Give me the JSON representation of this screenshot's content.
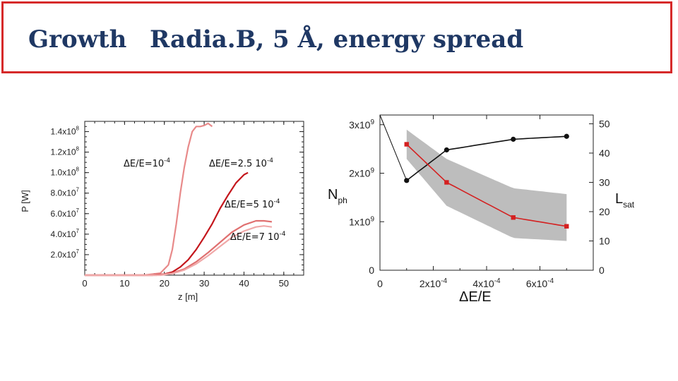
{
  "slide": {
    "title_left": "Growth",
    "title_right": "Radia.B, 5 Å, energy spread",
    "colors": {
      "border": "#d62a2a",
      "title": "#1f3864"
    }
  },
  "chart_data": [
    {
      "type": "line",
      "title": "",
      "xlabel": "z [m]",
      "ylabel": "P [W]",
      "xlim": [
        0,
        55
      ],
      "ylim": [
        0,
        150000000
      ],
      "x_ticks": [
        "0",
        "10",
        "20",
        "30",
        "40",
        "50"
      ],
      "y_tick_values": [
        20000000,
        40000000,
        60000000,
        80000000,
        100000000,
        120000000,
        140000000
      ],
      "y_ticks": [
        {
          "mant": "2.0x10",
          "exp": "7"
        },
        {
          "mant": "4.0x10",
          "exp": "7"
        },
        {
          "mant": "6.0x10",
          "exp": "7"
        },
        {
          "mant": "8.0x10",
          "exp": "7"
        },
        {
          "mant": "1.0x10",
          "exp": "8"
        },
        {
          "mant": "1.2x10",
          "exp": "8"
        },
        {
          "mant": "1.4x10",
          "exp": "8"
        }
      ],
      "series": [
        {
          "name": "ΔE/E=10-4",
          "color": "#e88a8a",
          "x": [
            0,
            15,
            19,
            21,
            22,
            23,
            24,
            25,
            26,
            27,
            28,
            29,
            30,
            31,
            32
          ],
          "y": [
            0,
            0,
            2000000,
            10000000,
            25000000,
            50000000,
            80000000,
            105000000,
            125000000,
            140000000,
            145000000,
            145000000,
            146000000,
            148000000,
            145000000
          ]
        },
        {
          "name": "ΔE/E=2.5 10-4",
          "color": "#c4161c",
          "x": [
            0,
            17,
            20,
            22,
            24,
            26,
            28,
            30,
            32,
            34,
            36,
            38,
            40,
            41
          ],
          "y": [
            0,
            0,
            1000000,
            3000000,
            8000000,
            15000000,
            25000000,
            37000000,
            50000000,
            65000000,
            78000000,
            90000000,
            98000000,
            100000000
          ]
        },
        {
          "name": "ΔE/E=5 10-4",
          "color": "#e07070",
          "x": [
            0,
            18,
            22,
            25,
            28,
            31,
            34,
            37,
            40,
            43,
            45,
            47
          ],
          "y": [
            0,
            0,
            2000000,
            6000000,
            13000000,
            22000000,
            32000000,
            42000000,
            49000000,
            53000000,
            53000000,
            52000000
          ]
        },
        {
          "name": "ΔE/E=7 10-4",
          "color": "#f0a8a8",
          "x": [
            0,
            19,
            22,
            25,
            28,
            31,
            34,
            37,
            40,
            43,
            45,
            47
          ],
          "y": [
            0,
            0,
            1500000,
            5000000,
            11000000,
            19000000,
            28000000,
            37000000,
            43000000,
            47000000,
            48000000,
            47000000
          ]
        }
      ],
      "annotations": [
        {
          "base": "ΔE/E=10",
          "exp": "-4"
        },
        {
          "base": "ΔE/E=2.5 10",
          "exp": "-4"
        },
        {
          "base": "ΔE/E=5 10",
          "exp": "-4"
        },
        {
          "base": "ΔE/E=7 10",
          "exp": "-4"
        }
      ]
    },
    {
      "type": "line",
      "title": "",
      "xlabel": "ΔE/E",
      "ylabel_left": {
        "base": "N",
        "sub": "ph"
      },
      "ylabel_right": {
        "base": "L",
        "sub": "sat"
      },
      "xlim": [
        0,
        0.0008
      ],
      "ylim_left": [
        0,
        3200000000
      ],
      "ylim_right": [
        0,
        53
      ],
      "x_ticks": [
        {
          "value": 0,
          "mant": "0",
          "exp": ""
        },
        {
          "value": 0.0002,
          "mant": "2x10",
          "exp": "-4"
        },
        {
          "value": 0.0004,
          "mant": "4x10",
          "exp": "-4"
        },
        {
          "value": 0.0006,
          "mant": "6x10",
          "exp": "-4"
        }
      ],
      "y_ticks_left": [
        {
          "value": 0,
          "mant": "0",
          "exp": ""
        },
        {
          "value": 1000000000,
          "mant": "1x10",
          "exp": "9"
        },
        {
          "value": 2000000000,
          "mant": "2x10",
          "exp": "9"
        },
        {
          "value": 3000000000,
          "mant": "3x10",
          "exp": "9"
        }
      ],
      "y_ticks_right": [
        "0",
        "10",
        "20",
        "30",
        "40",
        "50"
      ],
      "series": [
        {
          "name": "Nph",
          "axis": "left",
          "color": "#111111",
          "x": [
            0.0001,
            0.00025,
            0.0005,
            0.0007
          ],
          "y": [
            1850000000,
            2480000000,
            2700000000,
            2760000000
          ]
        },
        {
          "name": "Lsat",
          "axis": "right",
          "color": "#d42020",
          "x": [
            0.0001,
            0.00025,
            0.0005,
            0.0007
          ],
          "y": [
            43,
            30,
            18,
            15
          ],
          "band_upper": [
            48,
            38,
            28,
            26
          ],
          "band_lower": [
            38,
            22,
            11,
            10
          ]
        }
      ],
      "diagonal_line": {
        "x": [
          0,
          0.0001
        ],
        "y": [
          3200000000,
          1850000000
        ]
      }
    }
  ]
}
